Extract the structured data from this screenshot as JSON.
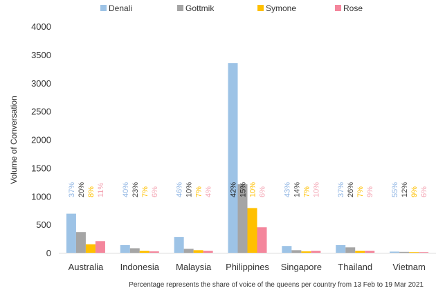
{
  "chart_data": {
    "type": "bar",
    "ylabel": "Volume of Conversation",
    "ylim": [
      0,
      4000
    ],
    "yticks": [
      0,
      500,
      1000,
      1500,
      2000,
      2500,
      3000,
      3500,
      4000
    ],
    "grid": false,
    "legend_position": "top",
    "categories": [
      "Australia",
      "Indonesia",
      "Malaysia",
      "Philippines",
      "Singapore",
      "Thailand",
      "Vietnam"
    ],
    "series": [
      {
        "name": "Denali",
        "color": "#9DC3E6",
        "values": [
          690,
          135,
          280,
          3350,
          120,
          135,
          20
        ],
        "labels": [
          "37%",
          "40%",
          "46%",
          "42%",
          "43%",
          "37%",
          "55%"
        ]
      },
      {
        "name": "Gottmik",
        "color": "#A5A5A5",
        "values": [
          365,
          80,
          70,
          1210,
          45,
          95,
          15
        ],
        "labels": [
          "20%",
          "23%",
          "10%",
          "15%",
          "14%",
          "26%",
          "12%"
        ]
      },
      {
        "name": "Symone",
        "color": "#FFC000",
        "values": [
          150,
          35,
          45,
          790,
          25,
          35,
          10
        ],
        "labels": [
          "8%",
          "7%",
          "7%",
          "10%",
          "7%",
          "7%",
          "9%"
        ]
      },
      {
        "name": "Rose",
        "color": "#F4869C",
        "values": [
          205,
          25,
          35,
          450,
          35,
          35,
          10
        ],
        "labels": [
          "11%",
          "6%",
          "4%",
          "6%",
          "10%",
          "9%",
          "6%"
        ]
      }
    ],
    "label_colors": {
      "Denali": "#8EB4E3",
      "Gottmik": "#404040",
      "Symone": "#FFC000",
      "Rose": "#F4A6B4",
      "inside": "#222222"
    },
    "footnote": "Percentage represents the share of voice of the queens per country from 13 Feb to 19 Mar 2021"
  }
}
